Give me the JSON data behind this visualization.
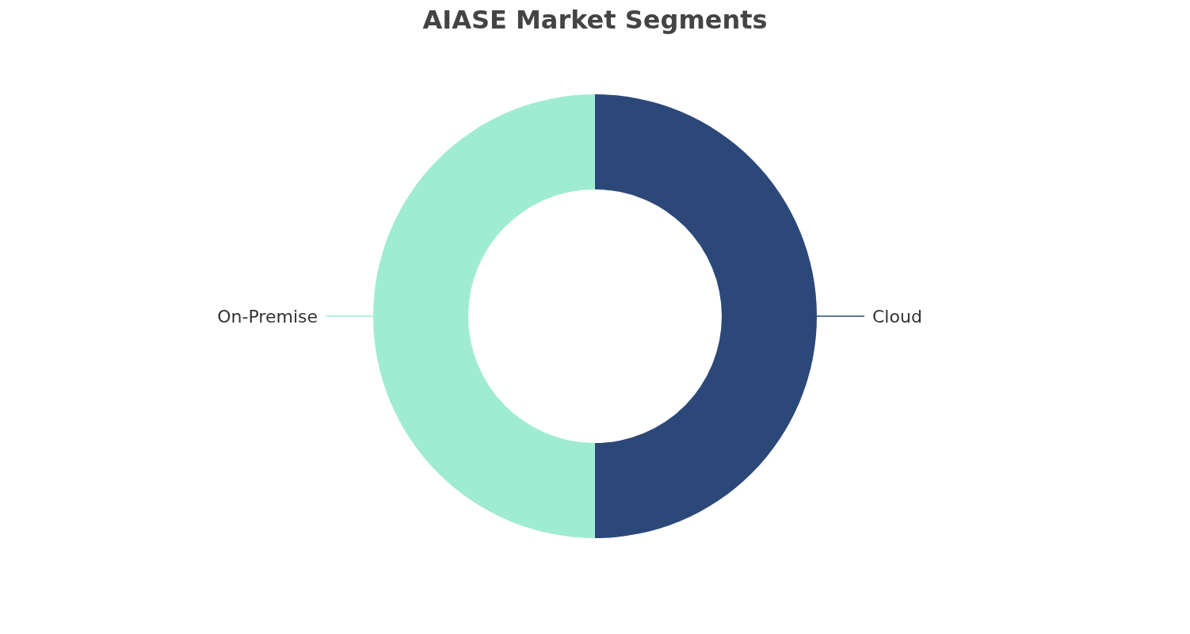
{
  "chart_data": {
    "type": "donut",
    "title": "AIASE Market Segments",
    "categories": [
      "Cloud",
      "On-Premise"
    ],
    "values": [
      50,
      50
    ],
    "colors": [
      "#2b4879",
      "#a0ecd3"
    ]
  }
}
